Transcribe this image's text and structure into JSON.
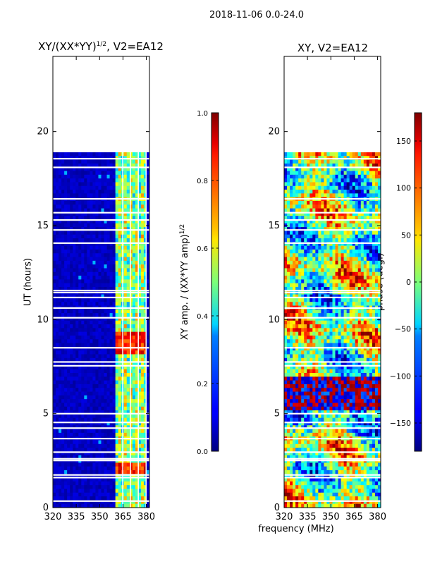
{
  "suptitle": "2018-11-06 0.0-24.0",
  "chart_data": [
    {
      "type": "heatmap",
      "title_prefix": "XY/(XX*YY)",
      "title_exponent": "1/2",
      "title_suffix": ", V2=EA12",
      "xlabel": "",
      "ylabel": "UT (hours)",
      "xlim": [
        320,
        382
      ],
      "ylim": [
        0,
        24
      ],
      "xticks": [
        "320",
        "335",
        "350",
        "365",
        "380"
      ],
      "xtick_values": [
        320,
        335,
        350,
        365,
        380
      ],
      "yticks": [
        "0",
        "5",
        "10",
        "15",
        "20"
      ],
      "ytick_values": [
        0,
        5,
        10,
        15,
        20
      ],
      "data_coverage_hours": [
        0,
        18.9
      ],
      "high_amplitude_band_mhz": [
        360,
        381
      ],
      "colorbar": {
        "label_prefix": "XY amp. / (XX*YY amp)",
        "label_exponent": "1/2",
        "ticks": [
          "0.0",
          "0.2",
          "0.4",
          "0.6",
          "0.8",
          "1.0"
        ],
        "tick_values": [
          0.0,
          0.2,
          0.4,
          0.6,
          0.8,
          1.0
        ],
        "range": [
          0,
          1
        ],
        "colormap": "jet"
      }
    },
    {
      "type": "heatmap",
      "title": "XY, V2=EA12",
      "xlabel": "frequency (MHz)",
      "ylabel": "",
      "xlim": [
        320,
        382
      ],
      "ylim": [
        0,
        24
      ],
      "xticks": [
        "320",
        "335",
        "350",
        "365",
        "380"
      ],
      "xtick_values": [
        320,
        335,
        350,
        365,
        380
      ],
      "yticks": [
        "0",
        "5",
        "10",
        "15",
        "20"
      ],
      "ytick_values": [
        0,
        5,
        10,
        15,
        20
      ],
      "data_coverage_hours": [
        0,
        18.9
      ],
      "colorbar": {
        "label": "phase (deg.)",
        "ticks": [
          "−150",
          "−100",
          "−50",
          "0",
          "50",
          "100",
          "150"
        ],
        "tick_values": [
          -150,
          -100,
          -50,
          0,
          50,
          100,
          150
        ],
        "range": [
          -180,
          180
        ],
        "colormap": "jet"
      }
    }
  ],
  "colors": {
    "jet_low": "#00007f",
    "jet_high": "#7f0000",
    "gap": "#ffffff",
    "axis": "#000000"
  }
}
